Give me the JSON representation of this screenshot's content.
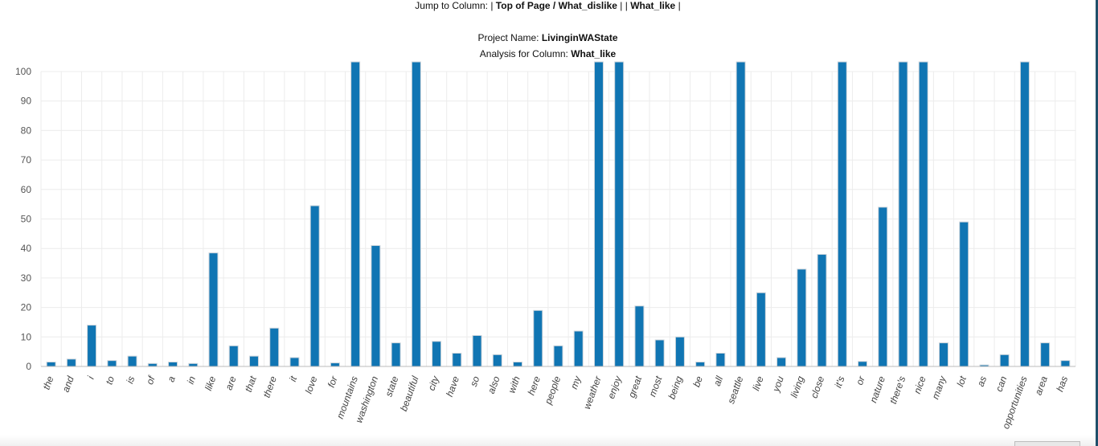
{
  "nav": {
    "jump_label": "Jump to Column: |",
    "links": [
      {
        "label": "Top of Page / What_dislike"
      },
      {
        "label": "What_like"
      }
    ],
    "sep_middle": "| |",
    "sep_end": "|"
  },
  "project": {
    "label": "Project Name:",
    "name": "LivinginWAState"
  },
  "analysis": {
    "label": "Analysis for Column:",
    "column": "What_like"
  },
  "chart_data": {
    "type": "bar",
    "categories": [
      "the",
      "and",
      "i",
      "to",
      "is",
      "of",
      "a",
      "in",
      "like",
      "are",
      "that",
      "there",
      "it",
      "love",
      "for",
      "mountains",
      "washington",
      "state",
      "beautiful",
      "city",
      "have",
      "so",
      "also",
      "with",
      "here",
      "people",
      "my",
      "weather",
      "enjoy",
      "great",
      "most",
      "being",
      "be",
      "all",
      "seattle",
      "live",
      "you",
      "living",
      "close",
      "it's",
      "or",
      "nature",
      "there's",
      "nice",
      "many",
      "lot",
      "as",
      "can",
      "opportunities",
      "area",
      "has"
    ],
    "values": [
      1.5,
      2.5,
      14,
      2,
      3.5,
      1,
      1.5,
      1,
      38.5,
      7,
      3.5,
      13,
      3,
      54.5,
      1.2,
      104,
      41,
      8,
      104,
      8.5,
      4.5,
      10.5,
      4,
      1.5,
      19,
      7,
      12,
      104,
      104,
      20.5,
      9,
      10,
      1.5,
      4.5,
      104,
      25,
      3,
      33,
      38,
      104,
      1.7,
      54,
      104,
      104,
      8,
      49,
      0.5,
      4,
      104,
      8,
      2
    ],
    "ylim": [
      0,
      100
    ],
    "yticks": [
      0,
      10,
      20,
      30,
      40,
      50,
      60,
      70,
      80,
      90,
      100
    ],
    "grid": true,
    "legend": "none"
  }
}
